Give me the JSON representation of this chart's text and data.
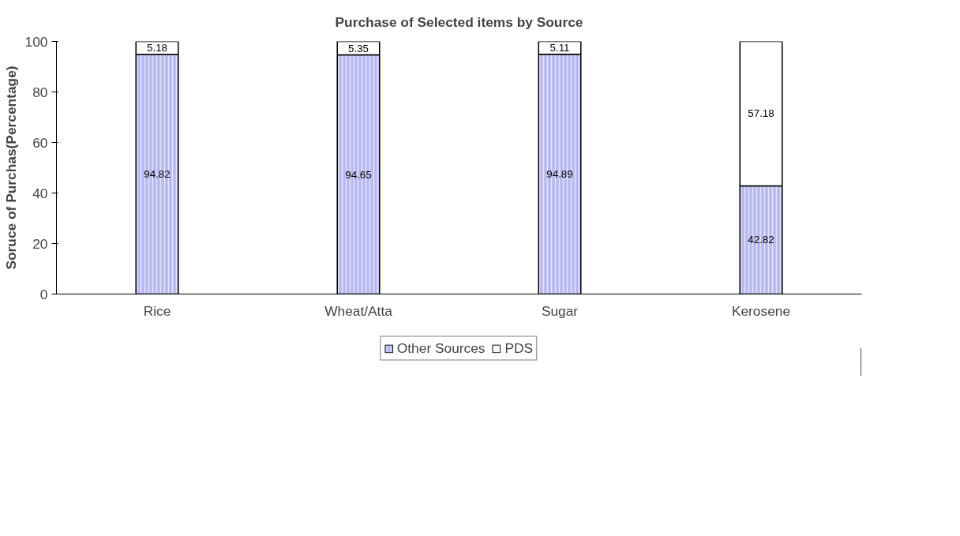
{
  "chart_data": {
    "type": "bar",
    "title": "Purchase of Selected items by Source",
    "ylabel": "Soruce of Purchas(Percentage)",
    "categories": [
      "Rice",
      "Wheat/Atta",
      "Sugar",
      "Kerosene"
    ],
    "series": [
      {
        "name": "Other Sources",
        "color": "#b8b8f0",
        "values": [
          94.82,
          94.65,
          94.89,
          42.82
        ]
      },
      {
        "name": "PDS",
        "color": "#ffffff",
        "values": [
          5.18,
          5.35,
          5.11,
          57.18
        ]
      }
    ],
    "stacked": true,
    "data_labels": true,
    "ylim": [
      0,
      100
    ],
    "yticks": [
      0,
      20,
      40,
      60,
      80,
      100
    ],
    "grid": false,
    "legend": "bottom"
  }
}
